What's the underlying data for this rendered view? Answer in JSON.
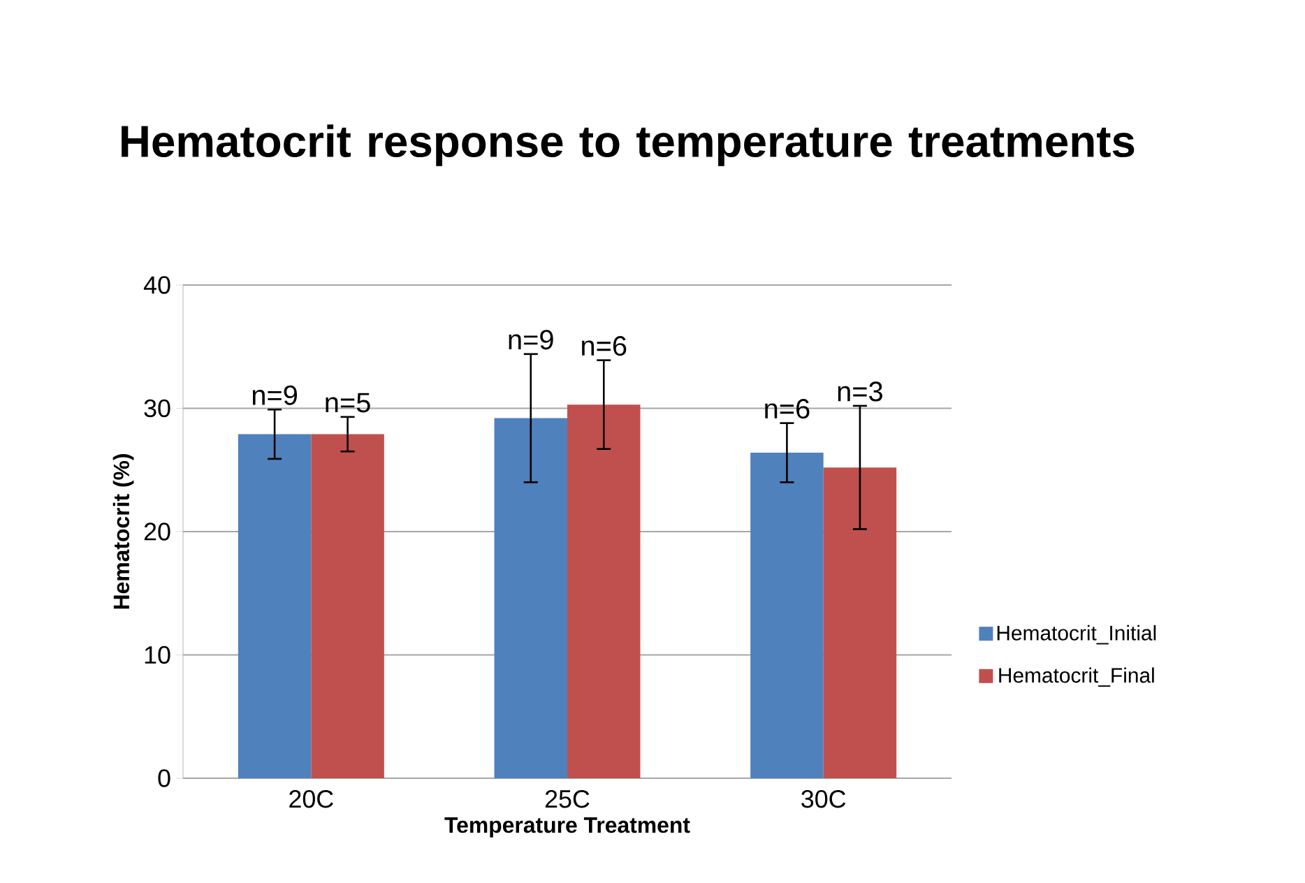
{
  "chart_data": {
    "type": "bar",
    "title": "Hematocrit response to temperature treatments",
    "xlabel": "Temperature Treatment",
    "ylabel": "Hematocrit (%)",
    "categories": [
      "20C",
      "25C",
      "30C"
    ],
    "series": [
      {
        "name": "Hematocrit_Initial",
        "color": "#4f81bd",
        "values": [
          27.9,
          29.2,
          26.4
        ],
        "errors": [
          2.0,
          5.2,
          2.4
        ]
      },
      {
        "name": "Hematocrit_Final",
        "color": "#c0504d",
        "values": [
          27.9,
          30.3,
          25.2
        ],
        "errors": [
          1.4,
          3.6,
          5.0
        ]
      }
    ],
    "annotations": [
      "n=9",
      "n=5",
      "n=9",
      "n=6",
      "n=6",
      "n=3"
    ],
    "ylim": [
      0,
      40
    ],
    "yticks": [
      0,
      10,
      20,
      30,
      40
    ],
    "grid": "y",
    "legend": "right"
  }
}
